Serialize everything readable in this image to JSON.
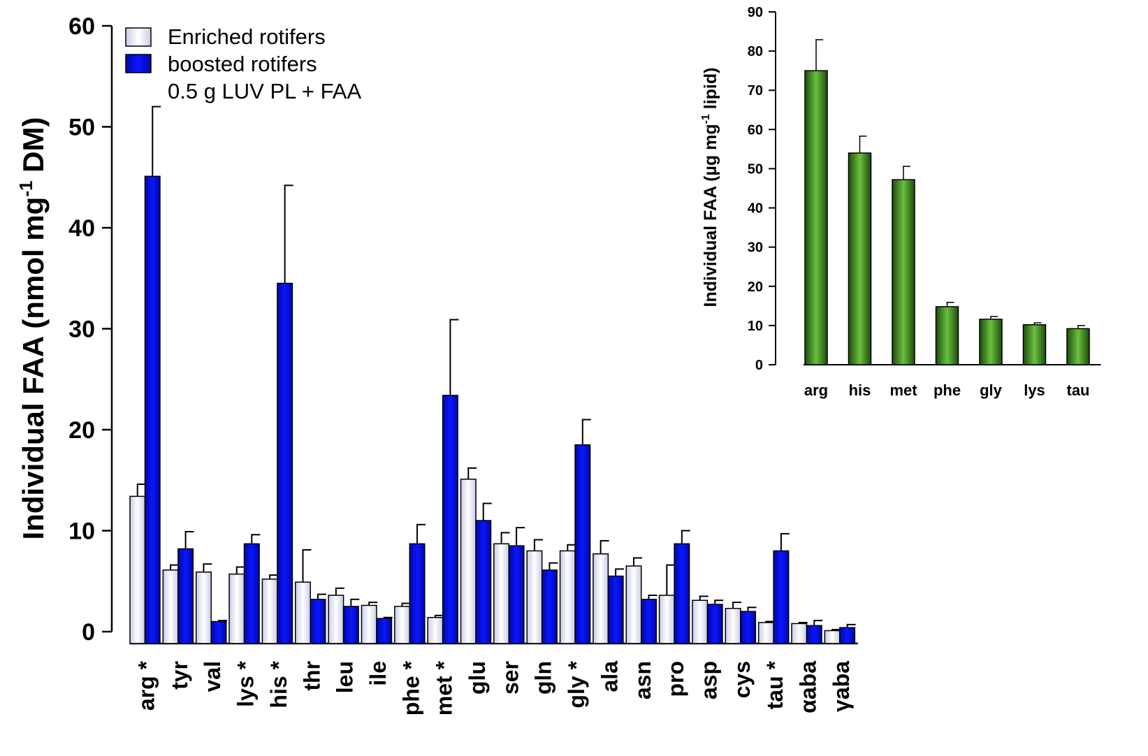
{
  "chart_data": [
    {
      "type": "bar",
      "ylabel": "Individual FAA (nmol mg-1 DM)",
      "ylabel_parts": {
        "pre": "Individual FAA (nmol mg",
        "sup": "-1",
        "post": " DM)"
      },
      "ylim": [
        0,
        60
      ],
      "yticks": [
        "0",
        "10",
        "20",
        "30",
        "40",
        "50",
        "60"
      ],
      "categories": [
        "arg *",
        "tyr",
        "val",
        "lys *",
        "his *",
        "thr",
        "leu",
        "ile",
        "phe *",
        "met *",
        "glu",
        "ser",
        "gln",
        "gly *",
        "ala",
        "asn",
        "pro",
        "asp",
        "cys",
        "tau *",
        "αaba",
        "γaba"
      ],
      "legend": {
        "position": "top-left",
        "entries": [
          "Enriched rotifers",
          "boosted rotifers"
        ],
        "note": "0.5 g LUV PL + FAA"
      },
      "series": [
        {
          "name": "Enriched rotifers",
          "color": "#e4e6f6",
          "values": [
            13.4,
            6.1,
            5.9,
            5.7,
            5.2,
            4.9,
            3.6,
            2.6,
            2.5,
            1.4,
            15.1,
            8.7,
            8.0,
            8.0,
            7.7,
            6.5,
            3.6,
            3.1,
            2.3,
            0.9,
            0.8,
            0.1
          ],
          "errors": [
            1.2,
            0.5,
            0.8,
            0.7,
            0.4,
            3.2,
            0.7,
            0.3,
            0.3,
            0.2,
            1.1,
            1.1,
            1.1,
            0.6,
            1.3,
            0.8,
            3.0,
            0.4,
            0.6,
            0.1,
            0.1,
            0.1
          ]
        },
        {
          "name": "boosted rotifers",
          "color": "#0a13d8",
          "values": [
            45.1,
            8.2,
            1.0,
            8.7,
            34.5,
            3.2,
            2.5,
            1.3,
            8.7,
            23.4,
            11.0,
            8.5,
            6.1,
            18.5,
            5.5,
            3.2,
            8.7,
            2.7,
            2.0,
            8.0,
            0.6,
            0.4
          ],
          "errors": [
            6.9,
            1.7,
            0.1,
            0.9,
            9.7,
            0.5,
            0.7,
            0.1,
            1.9,
            7.5,
            1.7,
            1.8,
            0.7,
            2.5,
            0.7,
            0.4,
            1.3,
            0.4,
            0.4,
            1.7,
            0.5,
            0.3
          ]
        }
      ]
    },
    {
      "type": "bar",
      "ylabel": "Individual FAA (µg mg-1 lipid)",
      "ylabel_parts": {
        "pre": "Individual FAA (µg mg",
        "sup": "-1",
        "post": " lipid)"
      },
      "ylim": [
        0,
        90
      ],
      "yticks": [
        "0",
        "10",
        "20",
        "30",
        "40",
        "50",
        "60",
        "70",
        "80",
        "90"
      ],
      "categories": [
        "arg",
        "his",
        "met",
        "phe",
        "gly",
        "lys",
        "tau"
      ],
      "series": [
        {
          "color": "#3a8a1f",
          "values": [
            75,
            54,
            47.2,
            14.8,
            11.6,
            10.2,
            9.2
          ],
          "errors": [
            7.9,
            4.3,
            3.4,
            1.1,
            0.7,
            0.5,
            0.8
          ]
        }
      ]
    }
  ]
}
